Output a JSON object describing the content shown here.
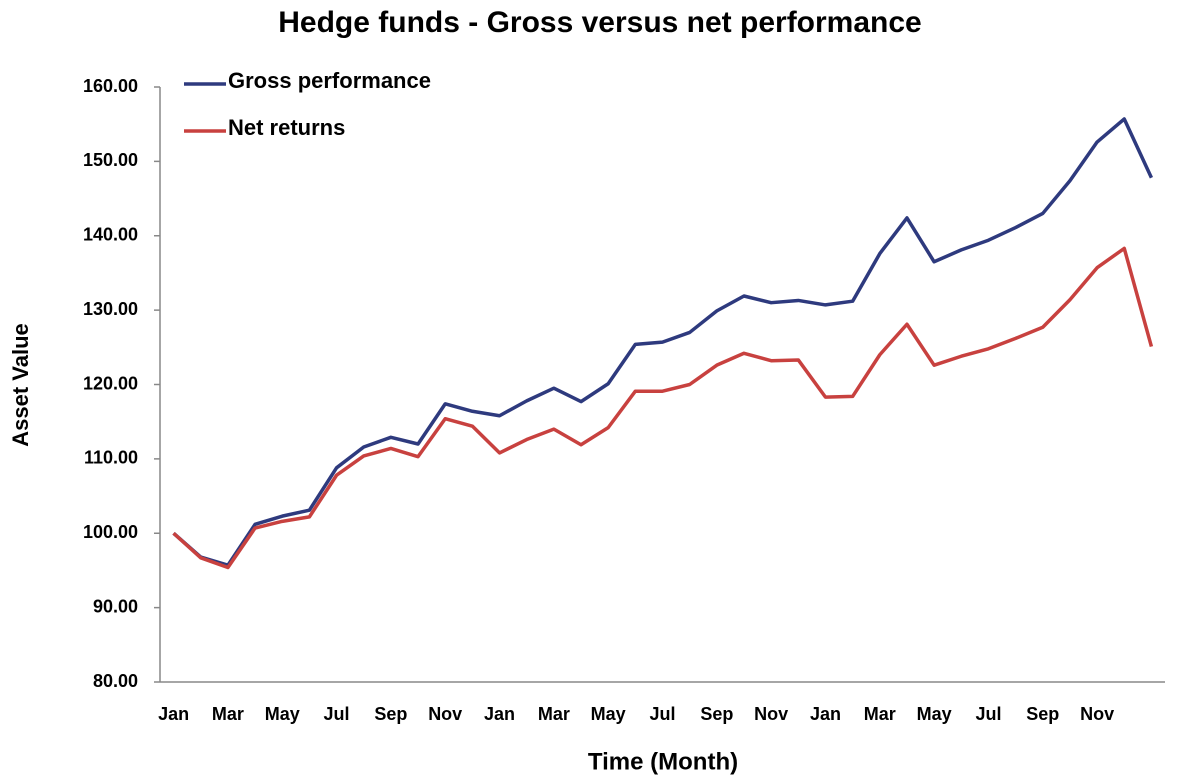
{
  "chart_data": {
    "type": "line",
    "title": "Hedge funds - Gross versus net performance",
    "x_label": "Time (Month)",
    "y_label": "Asset Value",
    "categories": [
      "Jan",
      null,
      "Mar",
      null,
      "May",
      null,
      "Jul",
      null,
      "Sep",
      null,
      "Nov",
      null,
      "Jan",
      null,
      "Mar",
      null,
      "May",
      null,
      "Jul",
      null,
      "Sep",
      null,
      "Nov",
      null,
      "Jan",
      null,
      "Mar",
      null,
      "May",
      null,
      "Jul",
      null,
      "Sep",
      null,
      "Nov",
      null,
      null
    ],
    "series": [
      {
        "name": "Gross performance",
        "color": "#2e3a7e",
        "values": [
          100,
          96.8,
          95.7,
          101.2,
          102.3,
          103.1,
          108.8,
          111.6,
          112.9,
          112.0,
          117.4,
          116.4,
          115.8,
          117.8,
          119.5,
          117.7,
          120.1,
          125.4,
          125.7,
          127.0,
          129.9,
          131.9,
          131.0,
          131.3,
          130.7,
          131.2,
          137.6,
          142.4,
          136.5,
          138.1,
          139.4,
          141.1,
          143.0,
          147.4,
          152.6,
          155.7,
          147.8
        ]
      },
      {
        "name": "Net returns",
        "color": "#c8413f",
        "values": [
          100,
          96.7,
          95.4,
          100.7,
          101.6,
          102.2,
          107.8,
          110.4,
          111.4,
          110.3,
          115.4,
          114.4,
          110.8,
          112.6,
          114.0,
          111.9,
          114.2,
          119.1,
          119.1,
          120.0,
          122.6,
          124.2,
          123.2,
          123.3,
          118.3,
          118.4,
          124.0,
          128.1,
          122.6,
          123.8,
          124.8,
          126.2,
          127.7,
          131.4,
          135.7,
          138.3,
          125.1
        ]
      }
    ],
    "ylim": [
      80,
      160
    ],
    "yticks": [
      {
        "value": 80,
        "label": "80.00"
      },
      {
        "value": 90,
        "label": "90.00"
      },
      {
        "value": 100,
        "label": "100.00"
      },
      {
        "value": 110,
        "label": "110.00"
      },
      {
        "value": 120,
        "label": "120.00"
      },
      {
        "value": 130,
        "label": "130.00"
      },
      {
        "value": 140,
        "label": "140.00"
      },
      {
        "value": 150,
        "label": "150.00"
      },
      {
        "value": 160,
        "label": "160.00"
      }
    ],
    "grid": false,
    "legend": "upper left"
  }
}
